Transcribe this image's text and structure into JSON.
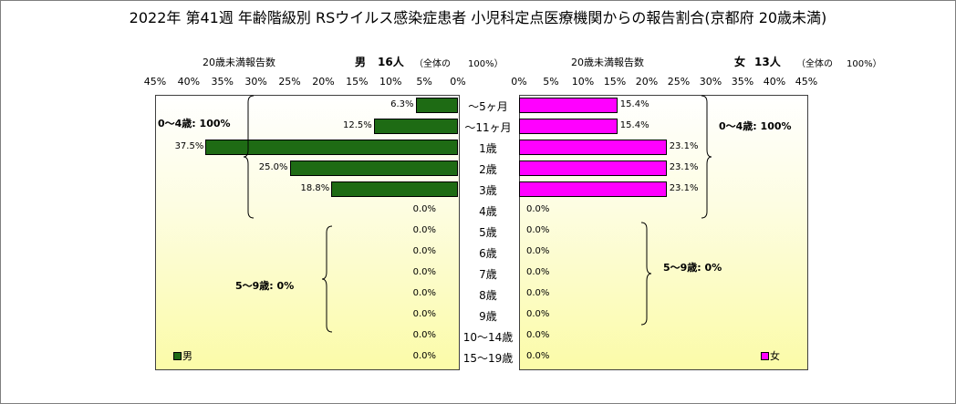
{
  "title": "2022年 第41週 年齢階級別 RSウイルス感染症患者 小児科定点医療機関からの報告割合(京都府 20歳未満)",
  "colors": {
    "male": "#1e6b14",
    "female": "#ff00ff"
  },
  "left_panel": {
    "count_label": "20歳未満報告数",
    "sex_label": "男",
    "count_value": "16人",
    "total_label": "（全体の",
    "total_pct": "100%）",
    "note": "0～4歳: 100%",
    "note2": "5～9歳: 0%",
    "legend": "男"
  },
  "right_panel": {
    "count_label": "20歳未満報告数",
    "sex_label": "女",
    "count_value": "13人",
    "total_label": "（全体の",
    "total_pct": "100%）",
    "note": "0～4歳: 100%",
    "note2": "5～9歳: 0%",
    "legend": "女"
  },
  "chart_data": {
    "type": "bar",
    "orientation": "horizontal-butterfly",
    "categories": [
      "～5ヶ月",
      "～11ヶ月",
      "1歳",
      "2歳",
      "3歳",
      "4歳",
      "5歳",
      "6歳",
      "7歳",
      "8歳",
      "9歳",
      "10～14歳",
      "15～19歳"
    ],
    "series": [
      {
        "name": "男",
        "values": [
          6.3,
          12.5,
          37.5,
          25.0,
          18.8,
          0,
          0,
          0,
          0,
          0,
          0,
          0,
          0
        ],
        "labels": [
          "6.3%",
          "12.5%",
          "37.5%",
          "25.0%",
          "18.8%",
          "0.0%",
          "0.0%",
          "0.0%",
          "0.0%",
          "0.0%",
          "0.0%",
          "0.0%",
          "0.0%"
        ]
      },
      {
        "name": "女",
        "values": [
          15.4,
          15.4,
          23.1,
          23.1,
          23.1,
          0,
          0,
          0,
          0,
          0,
          0,
          0,
          0
        ],
        "labels": [
          "15.4%",
          "15.4%",
          "23.1%",
          "23.1%",
          "23.1%",
          "0.0%",
          "0.0%",
          "0.0%",
          "0.0%",
          "0.0%",
          "0.0%",
          "0.0%",
          "0.0%"
        ]
      }
    ],
    "left_ticks": [
      "45%",
      "40%",
      "35%",
      "30%",
      "25%",
      "20%",
      "15%",
      "10%",
      "5%",
      "0%"
    ],
    "right_ticks": [
      "0%",
      "5%",
      "10%",
      "15%",
      "20%",
      "25%",
      "30%",
      "35%",
      "40%",
      "45%"
    ],
    "xlim": [
      0,
      45
    ],
    "legend_position": "bottom"
  }
}
